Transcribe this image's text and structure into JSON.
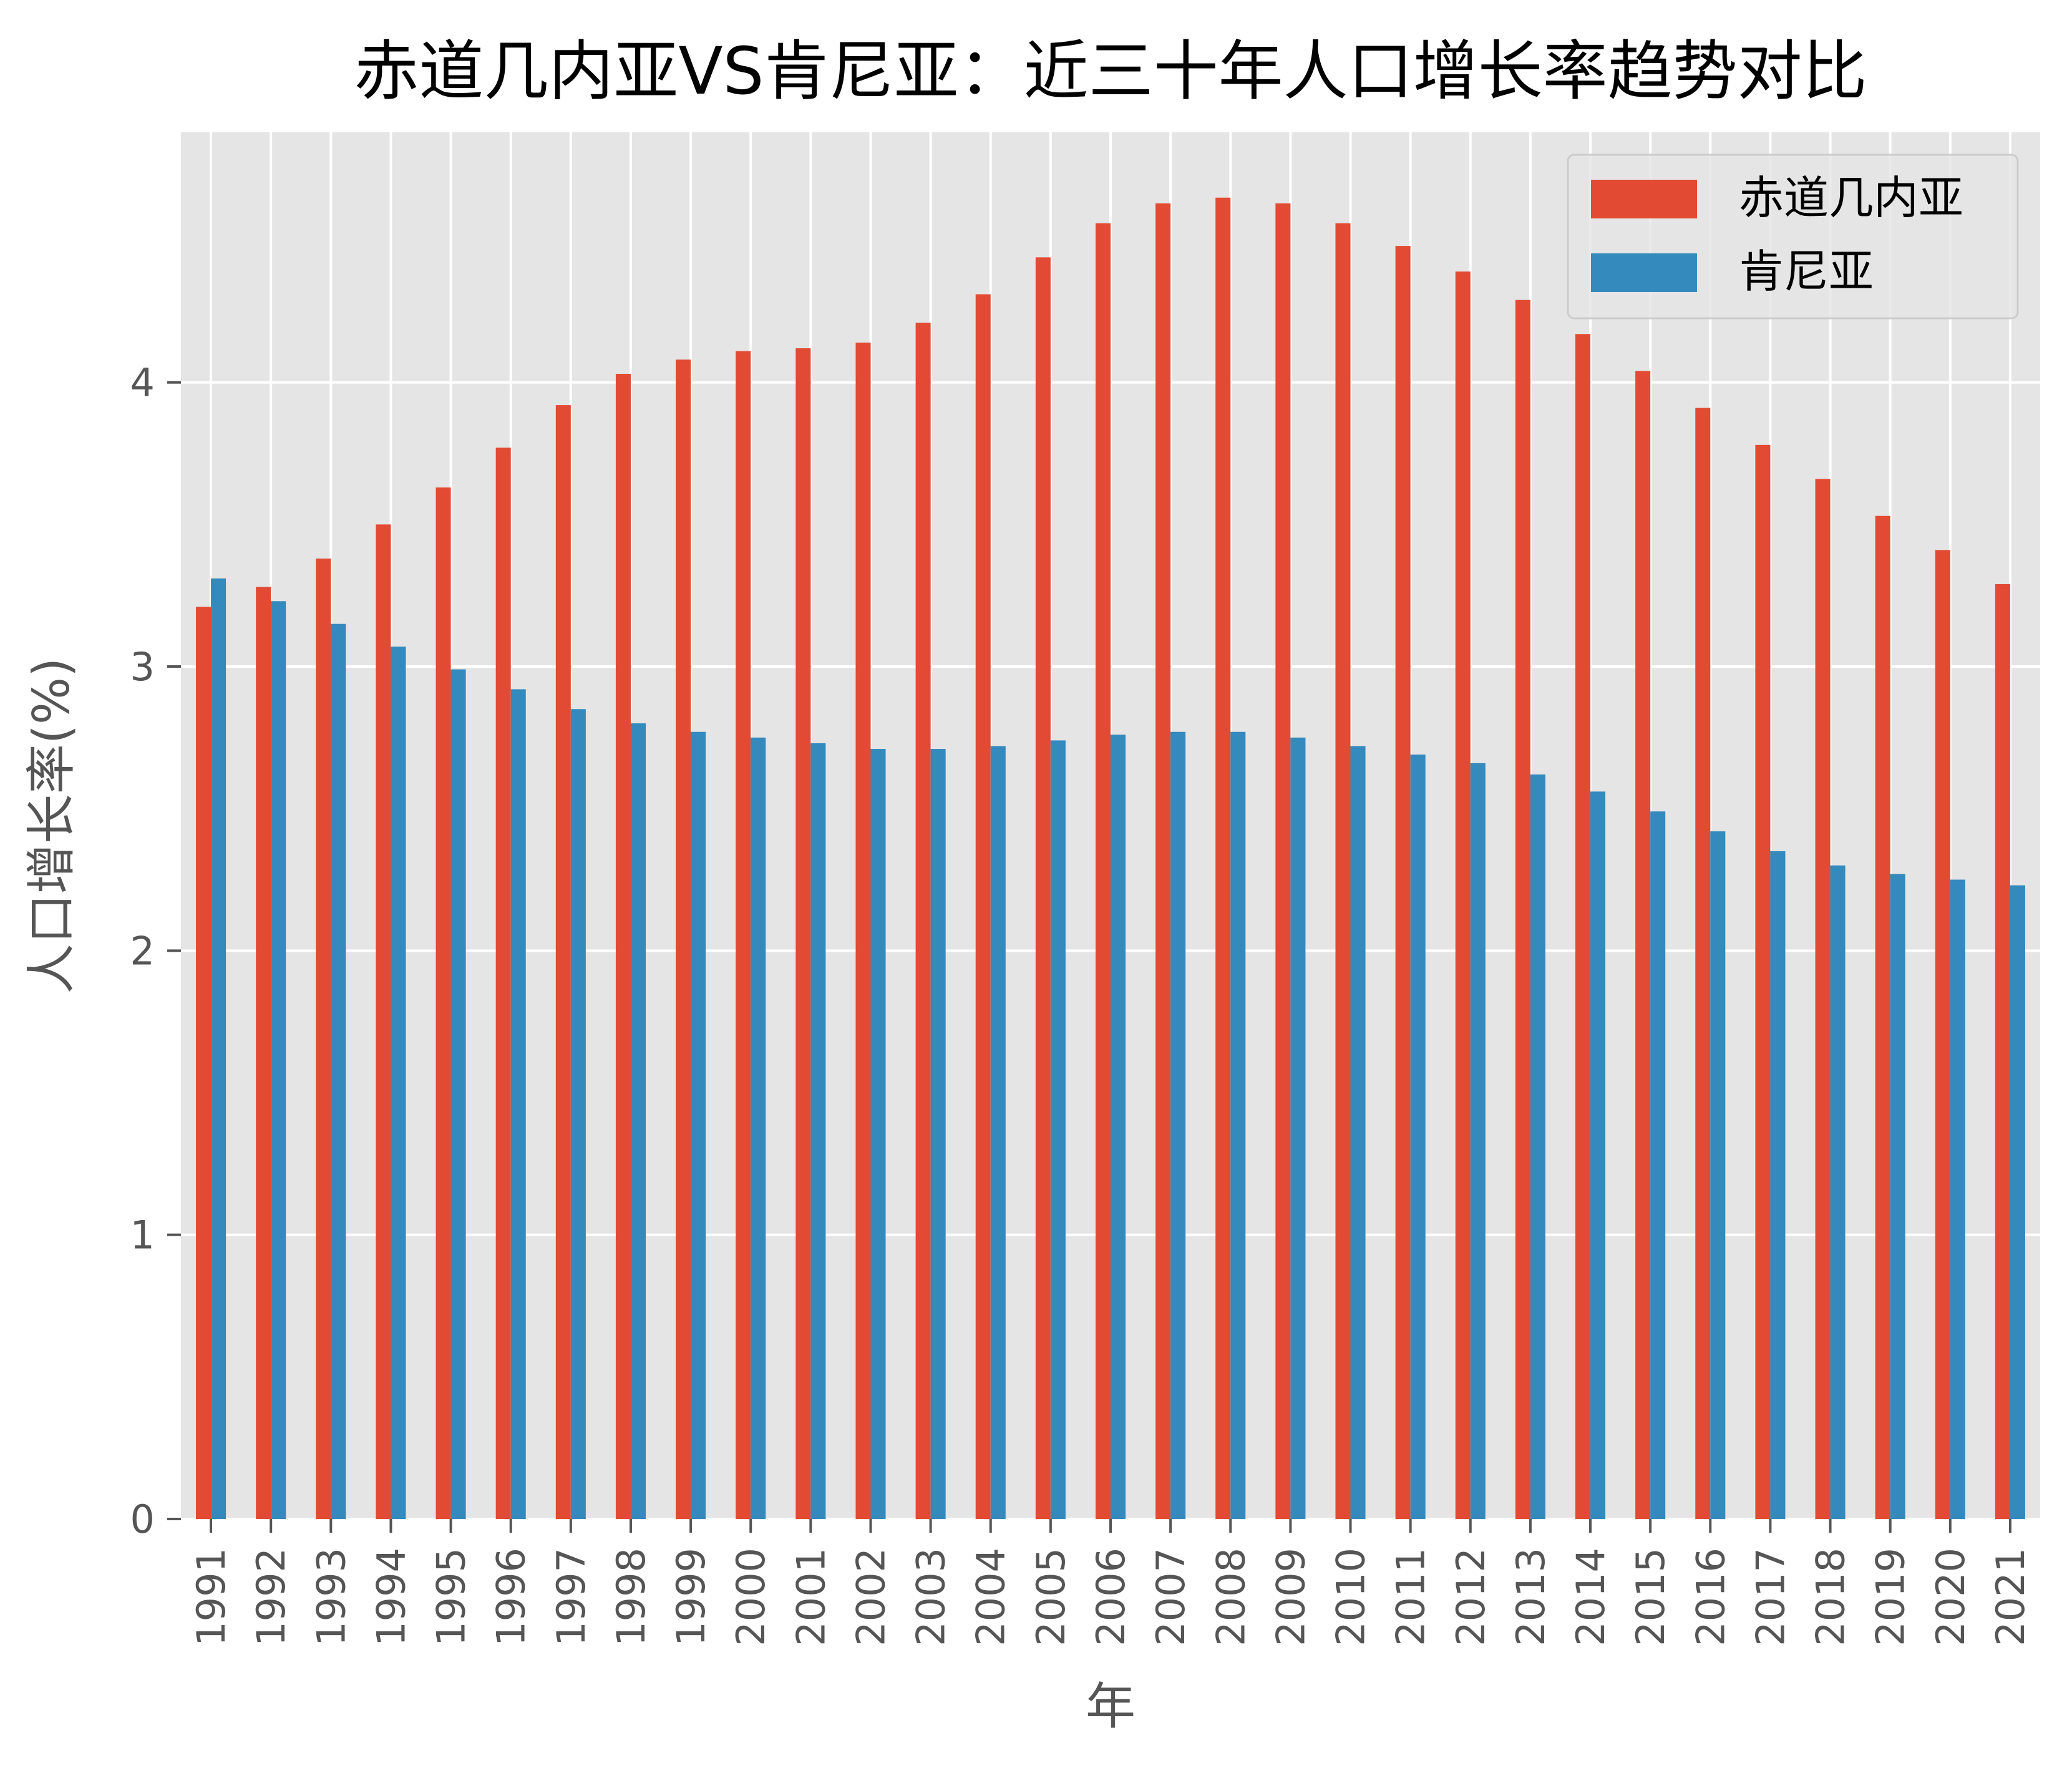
{
  "chart_data": {
    "type": "bar",
    "title": "赤道几内亚VS肯尼亚：近三十年人口增长率趋势对比",
    "xlabel": "年",
    "ylabel": "人口增长率(%)",
    "categories": [
      "1991",
      "1992",
      "1993",
      "1994",
      "1995",
      "1996",
      "1997",
      "1998",
      "1999",
      "2000",
      "2001",
      "2002",
      "2003",
      "2004",
      "2005",
      "2006",
      "2007",
      "2008",
      "2009",
      "2010",
      "2011",
      "2012",
      "2013",
      "2014",
      "2015",
      "2016",
      "2017",
      "2018",
      "2019",
      "2020",
      "2021"
    ],
    "series": [
      {
        "name": "赤道几内亚",
        "color": "#E24A33",
        "values": [
          3.21,
          3.28,
          3.38,
          3.5,
          3.63,
          3.77,
          3.92,
          4.03,
          4.08,
          4.11,
          4.12,
          4.14,
          4.21,
          4.31,
          4.44,
          4.56,
          4.63,
          4.65,
          4.63,
          4.56,
          4.48,
          4.39,
          4.29,
          4.17,
          4.04,
          3.91,
          3.78,
          3.66,
          3.53,
          3.41,
          3.29
        ]
      },
      {
        "name": "肯尼亚",
        "color": "#348ABD",
        "values": [
          3.31,
          3.23,
          3.15,
          3.07,
          2.99,
          2.92,
          2.85,
          2.8,
          2.77,
          2.75,
          2.73,
          2.71,
          2.71,
          2.72,
          2.74,
          2.76,
          2.77,
          2.77,
          2.75,
          2.72,
          2.69,
          2.66,
          2.62,
          2.56,
          2.49,
          2.42,
          2.35,
          2.3,
          2.27,
          2.25,
          2.23
        ]
      }
    ],
    "ylim": [
      0,
      4.88
    ],
    "yticks": [
      "0",
      "1",
      "2",
      "3",
      "4"
    ],
    "grid": true,
    "legend_position": "top-right",
    "background_color": "#E5E5E5",
    "grid_color": "#FFFFFF"
  }
}
